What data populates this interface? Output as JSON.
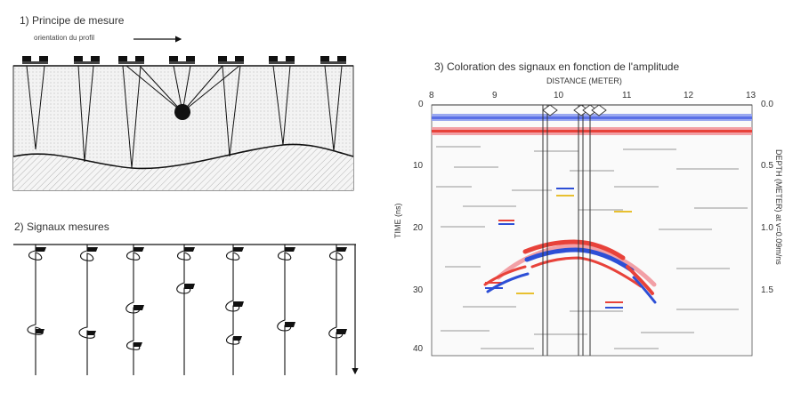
{
  "panel1": {
    "title": "1) Principe de mesure",
    "orientation_label": "orientation du profil"
  },
  "panel2": {
    "title": "2)  Signaux mesures"
  },
  "panel3": {
    "title": "3)  Coloration des signaux en fonction de l'amplitude",
    "top_axis_label": "DISTANCE (METER)",
    "left_axis_label": "TIME (ns)",
    "right_axis_label": "DEPTH (METER) at v=0.09m/ns",
    "top_ticks": [
      "8",
      "9",
      "10",
      "11",
      "12",
      "13"
    ],
    "left_ticks": [
      "0",
      "10",
      "20",
      "30",
      "40"
    ],
    "right_ticks": [
      "0.0",
      "0.5",
      "1.0",
      "1.5"
    ]
  },
  "colors": {
    "red": "#e8423a",
    "blue": "#2d4fd6",
    "pink": "#f2a0a6",
    "lightblue": "#9aa8f0",
    "gray": "#c8c8c8"
  }
}
